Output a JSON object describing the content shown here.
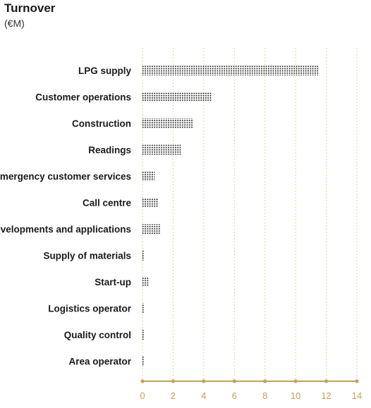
{
  "title": "Turnover",
  "subtitle": "(€M)",
  "colors": {
    "axis": "#c5a253",
    "grid": "#d8c48c",
    "dots": "#111111",
    "text": "#1a1a1a"
  },
  "chart_data": {
    "type": "bar",
    "orientation": "horizontal",
    "title": "Turnover",
    "subtitle": "(€M)",
    "xlabel": "",
    "ylabel": "",
    "xlim": [
      0,
      14
    ],
    "ticks": [
      0,
      2,
      4,
      6,
      8,
      10,
      12,
      14
    ],
    "tick_labels": [
      "0",
      "2",
      "4",
      "6",
      "8",
      "10",
      "12",
      "14"
    ],
    "grid": "vertical dotted",
    "categories": [
      "LPG supply",
      "Customer operations",
      "Construction",
      "Readings",
      "Emergency customer services",
      "Call centre",
      "Developments and applications",
      "Supply of materials",
      "Start-up",
      "Logistics operator",
      "Quality control",
      "Area operator"
    ],
    "values": [
      11.5,
      4.5,
      3.3,
      2.5,
      0.8,
      1.0,
      1.2,
      0.1,
      0.4,
      0.1,
      0.1,
      0.1
    ]
  }
}
